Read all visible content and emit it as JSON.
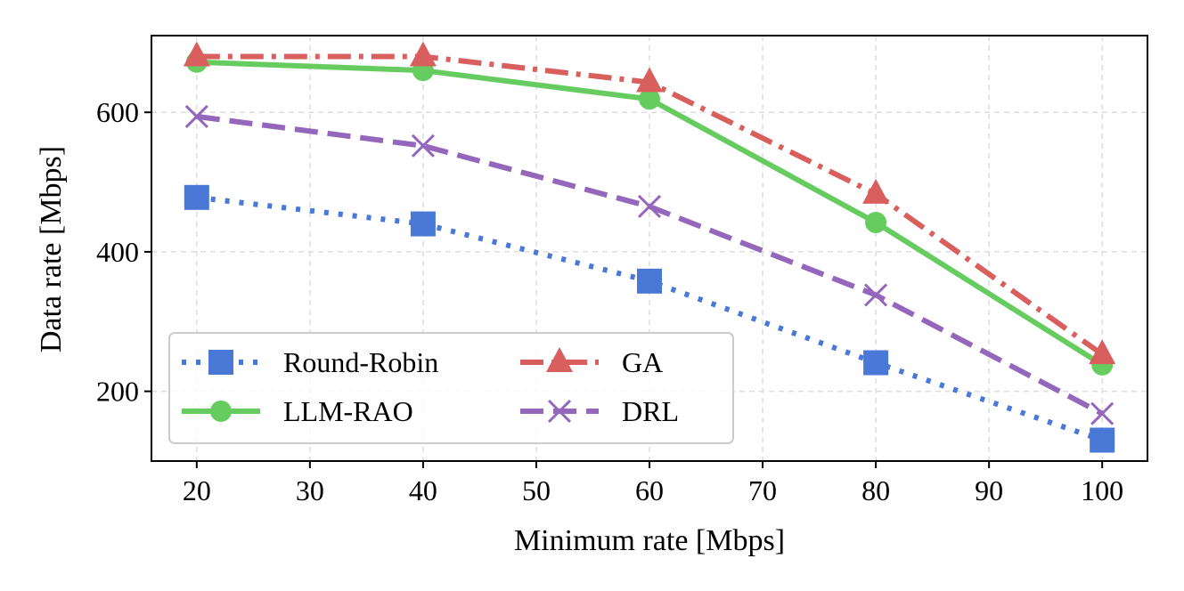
{
  "chart_data": {
    "type": "line",
    "title": "",
    "xlabel": "Minimum rate [Mbps]",
    "ylabel": "Data rate [Mbps]",
    "xlim": [
      16,
      104
    ],
    "ylim": [
      100,
      710
    ],
    "xticks": [
      20,
      30,
      40,
      50,
      60,
      70,
      80,
      90,
      100
    ],
    "yticks": [
      200,
      400,
      600
    ],
    "grid": true,
    "legend_position": "lower-left",
    "x": [
      20,
      40,
      60,
      80,
      100
    ],
    "series": [
      {
        "name": "Round-Robin",
        "values": [
          478,
          440,
          358,
          241,
          130
        ],
        "color": "#4a78d6",
        "marker": "square",
        "linestyle": "dotted"
      },
      {
        "name": "LLM-RAO",
        "values": [
          672,
          660,
          619,
          442,
          238
        ],
        "color": "#66cc5f",
        "marker": "circle",
        "linestyle": "solid"
      },
      {
        "name": "GA",
        "values": [
          680,
          680,
          643,
          483,
          253
        ],
        "color": "#d95f5f",
        "marker": "triangle",
        "linestyle": "dashdot"
      },
      {
        "name": "DRL",
        "values": [
          594,
          552,
          465,
          338,
          168
        ],
        "color": "#9467bd",
        "marker": "x",
        "linestyle": "dashed"
      }
    ]
  }
}
